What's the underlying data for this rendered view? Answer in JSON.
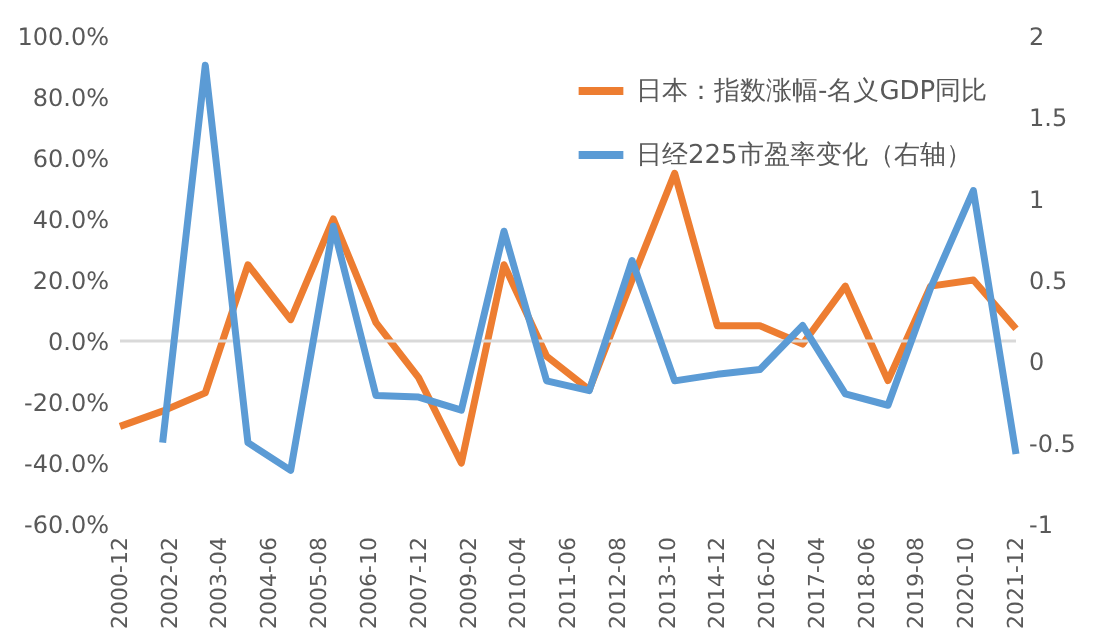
{
  "chart_data": {
    "type": "line",
    "x": [
      "2000-12",
      "2001-12",
      "2002-12",
      "2003-12",
      "2004-12",
      "2005-12",
      "2006-12",
      "2007-12",
      "2008-12",
      "2009-12",
      "2010-12",
      "2011-12",
      "2012-12",
      "2013-12",
      "2014-12",
      "2015-12",
      "2016-12",
      "2017-12",
      "2018-12",
      "2019-12",
      "2020-12",
      "2021-12"
    ],
    "series": [
      {
        "name": "日本：指数涨幅-名义GDP同比",
        "color": "#ed7d31",
        "values": [
          -28,
          -23,
          -17,
          25,
          7,
          40,
          6,
          -12,
          -40,
          25,
          -5,
          -16,
          20,
          55,
          5,
          5,
          -1,
          18,
          -13,
          18,
          20,
          4
        ]
      },
      {
        "name": "日经225市盈率变化（右轴）",
        "color": "#5b9bd5",
        "axis": "y2",
        "values": [
          null,
          -0.5,
          1.82,
          -0.5,
          -0.67,
          0.83,
          -0.21,
          -0.22,
          -0.3,
          0.8,
          -0.12,
          -0.18,
          0.62,
          -0.12,
          -0.08,
          -0.05,
          0.22,
          -0.2,
          -0.27,
          0.45,
          1.05,
          -0.57
        ]
      }
    ],
    "xlim": [
      "2000-12",
      "2021-12"
    ],
    "xticks": [
      {
        "value": "2000-12",
        "label": "2000-12"
      },
      {
        "value": "2002-02",
        "label": "2002-02"
      },
      {
        "value": "2003-04",
        "label": "2003-04"
      },
      {
        "value": "2004-06",
        "label": "2004-06"
      },
      {
        "value": "2005-08",
        "label": "2005-08"
      },
      {
        "value": "2006-10",
        "label": "2006-10"
      },
      {
        "value": "2007-12",
        "label": "2007-12"
      },
      {
        "value": "2009-02",
        "label": "2009-02"
      },
      {
        "value": "2010-04",
        "label": "2010-04"
      },
      {
        "value": "2011-06",
        "label": "2011-06"
      },
      {
        "value": "2012-08",
        "label": "2012-08"
      },
      {
        "value": "2013-10",
        "label": "2013-10"
      },
      {
        "value": "2014-12",
        "label": "2014-12"
      },
      {
        "value": "2016-02",
        "label": "2016-02"
      },
      {
        "value": "2017-04",
        "label": "2017-04"
      },
      {
        "value": "2018-06",
        "label": "2018-06"
      },
      {
        "value": "2019-08",
        "label": "2019-08"
      },
      {
        "value": "2020-10",
        "label": "2020-10"
      },
      {
        "value": "2021-12",
        "label": "2021-12"
      }
    ],
    "ylim": [
      -60,
      100
    ],
    "yticks": [
      {
        "value": -60,
        "label": "-60.0%"
      },
      {
        "value": -40,
        "label": "-40.0%"
      },
      {
        "value": -20,
        "label": "-20.0%"
      },
      {
        "value": 0,
        "label": "0.0%"
      },
      {
        "value": 20,
        "label": "20.0%"
      },
      {
        "value": 40,
        "label": "40.0%"
      },
      {
        "value": 60,
        "label": "60.0%"
      },
      {
        "value": 80,
        "label": "80.0%"
      },
      {
        "value": 100,
        "label": "100.0%"
      }
    ],
    "y2lim": [
      -1,
      2
    ],
    "y2ticks": [
      -1,
      -0.5,
      0,
      0.5,
      1,
      1.5,
      2
    ],
    "ref_lines": [
      {
        "axis": "y",
        "value": 0,
        "color": "#d9d9d9"
      }
    ],
    "legend": "top right",
    "grid": false,
    "line_style": "solid"
  }
}
